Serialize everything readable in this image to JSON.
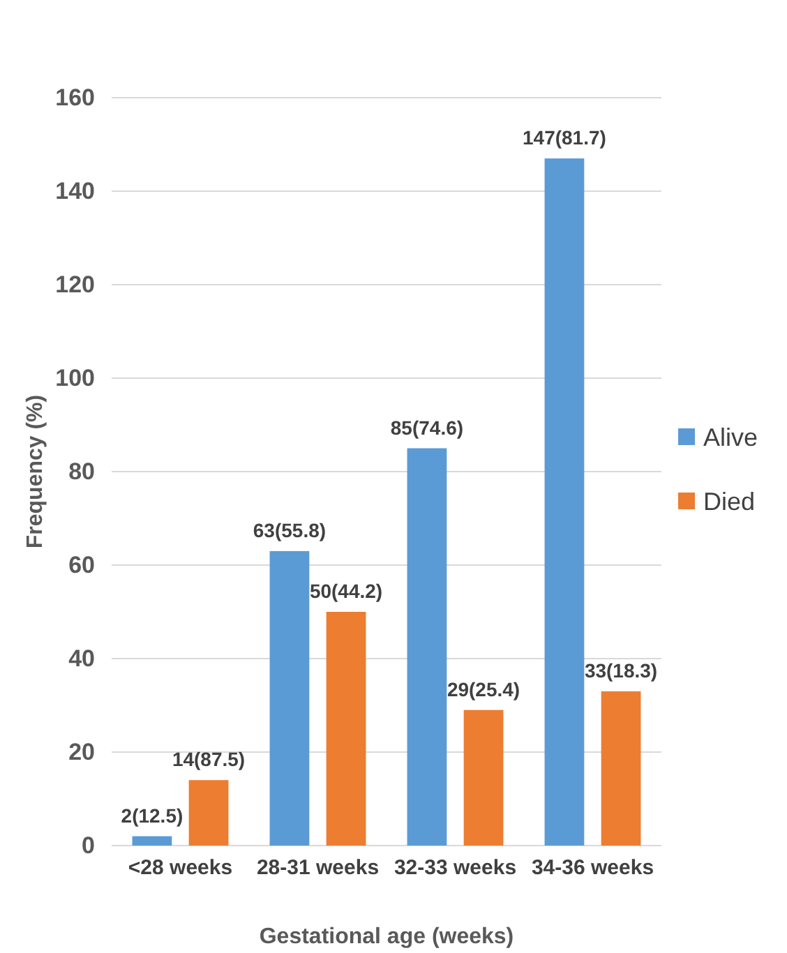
{
  "chart_data": {
    "type": "bar",
    "xlabel": "Gestational age (weeks)",
    "ylabel": "Frequency (%)",
    "categories": [
      "<28 weeks",
      "28-31 weeks",
      "32-33 weeks",
      "34-36 weeks"
    ],
    "series": [
      {
        "name": "Alive",
        "color": "#5b9bd5",
        "values": [
          2,
          63,
          85,
          147
        ],
        "value_labels": [
          "2(12.5)",
          "63(55.8)",
          "85(74.6)",
          "147(81.7)"
        ]
      },
      {
        "name": "Died",
        "color": "#ed7d31",
        "values": [
          14,
          50,
          29,
          33
        ],
        "value_labels": [
          "14(87.5)",
          "50(44.2)",
          "29(25.4)",
          "33(18.3)"
        ]
      }
    ],
    "ylim": [
      0,
      160
    ],
    "yticks": [
      0,
      20,
      40,
      60,
      80,
      100,
      120,
      140,
      160
    ],
    "grid": "y",
    "legend": "right"
  }
}
